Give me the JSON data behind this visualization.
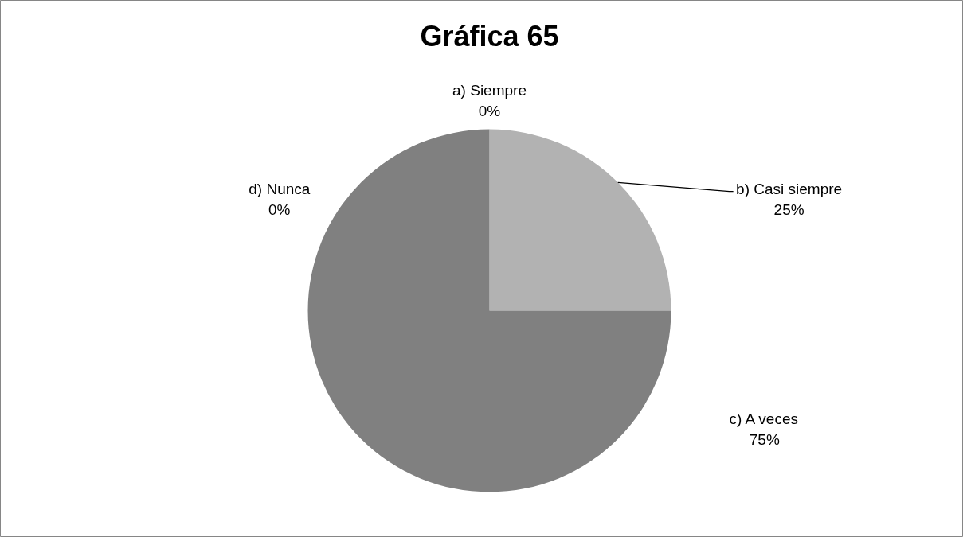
{
  "chart_data": {
    "type": "pie",
    "title": "Gráfica 65",
    "categories": [
      "a) Siempre",
      "b) Casi siempre",
      "c) A veces",
      "d) Nunca"
    ],
    "values": [
      0,
      25,
      75,
      0
    ],
    "value_labels": [
      "0%",
      "25%",
      "75%",
      "0%"
    ],
    "colors": [
      "#d9d9d9",
      "#b2b2b2",
      "#808080",
      "#595959"
    ],
    "legend": false
  }
}
